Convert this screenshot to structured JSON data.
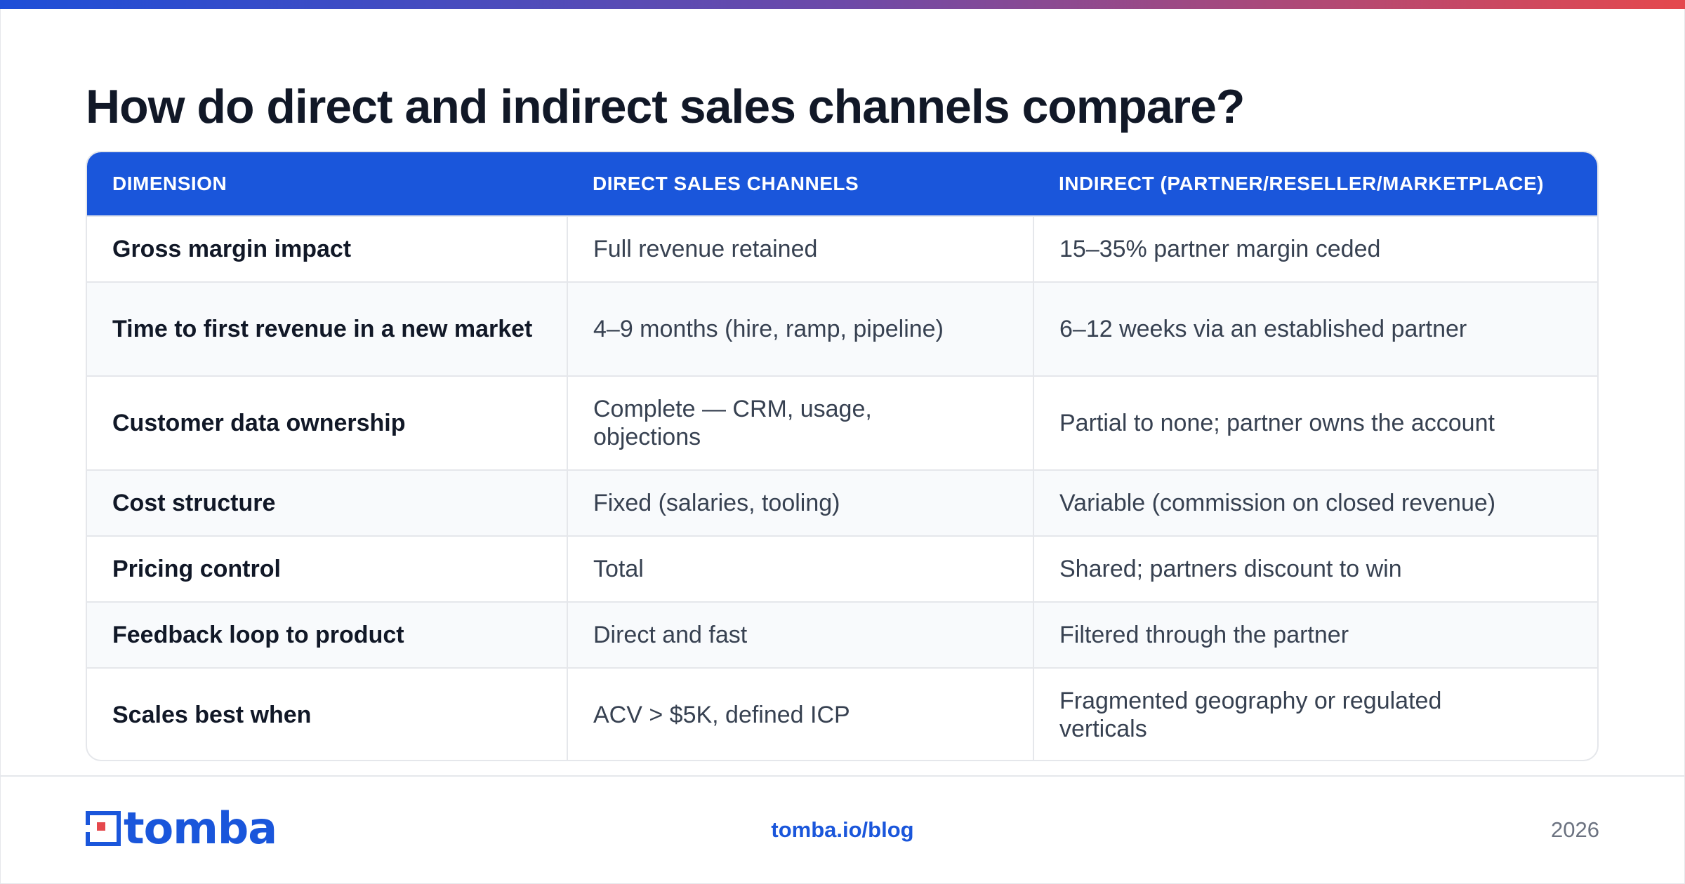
{
  "title": "How do direct and indirect sales channels compare?",
  "colors": {
    "accent": "#1a56db",
    "gradient_start": "#1d4ed8",
    "gradient_end": "#e5484d"
  },
  "table": {
    "headers": [
      "DIMENSION",
      "DIRECT SALES CHANNELS",
      "INDIRECT (PARTNER/RESELLER/MARKETPLACE)"
    ],
    "rows": [
      {
        "dimension": "Gross margin impact",
        "direct": "Full revenue retained",
        "indirect": "15–35% partner margin ceded"
      },
      {
        "dimension": "Time to first revenue in a new market",
        "direct": "4–9 months (hire, ramp, pipeline)",
        "indirect": "6–12 weeks via an established partner"
      },
      {
        "dimension": "Customer data ownership",
        "direct": "Complete — CRM, usage, objections",
        "indirect": "Partial to none; partner owns the account"
      },
      {
        "dimension": "Cost structure",
        "direct": "Fixed (salaries, tooling)",
        "indirect": "Variable (commission on closed revenue)"
      },
      {
        "dimension": "Pricing control",
        "direct": "Total",
        "indirect": "Shared; partners discount to win"
      },
      {
        "dimension": "Feedback loop to product",
        "direct": "Direct and fast",
        "indirect": "Filtered through the partner"
      },
      {
        "dimension": "Scales best when",
        "direct": "ACV > $5K, defined ICP",
        "indirect": "Fragmented geography or regulated verticals"
      }
    ]
  },
  "footer": {
    "logo_text": "tomba",
    "logo_icon": "tomba-logo-icon",
    "link": "tomba.io/blog",
    "year": "2026"
  }
}
